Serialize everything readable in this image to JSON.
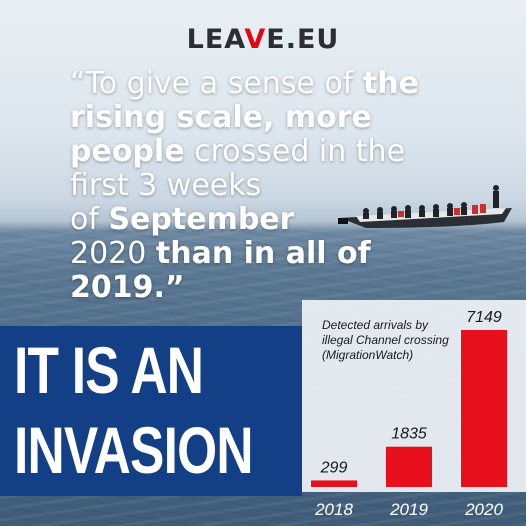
{
  "logo": {
    "text_left": "LEA",
    "text_mark": "V",
    "text_right": "E.EU"
  },
  "quote": {
    "line1_open": "“To give a sense of ",
    "line1_bold": "the",
    "line2_bold": "rising scale, more",
    "line3_bold": "people",
    "line3_rest": " crossed in the",
    "line4": "first 3 weeks",
    "line5_pre": "of ",
    "line5_bold": "September",
    "line6_pre": "2020 ",
    "line6_bold": "than in all of",
    "line7_bold": "2019.”"
  },
  "banner": {
    "line1": "IT IS AN",
    "line2": "INVASION"
  },
  "chart_data": {
    "type": "bar",
    "title": "Detected arrivals by illegal Channel crossing (MigrationWatch)",
    "title_lines": [
      "Detected arrivals by",
      "illegal Channel crossing",
      "(MigrationWatch)"
    ],
    "categories": [
      "2018",
      "2019",
      "2020"
    ],
    "values": [
      299,
      1835,
      7149
    ],
    "bar_color": "#e8101c",
    "ylim": [
      0,
      7149
    ],
    "grid": false
  },
  "colors": {
    "banner": "#123f86",
    "accent": "#e30613",
    "logo": "#2b2e33"
  },
  "icons": {
    "boat": "migrant-boat-photo"
  }
}
